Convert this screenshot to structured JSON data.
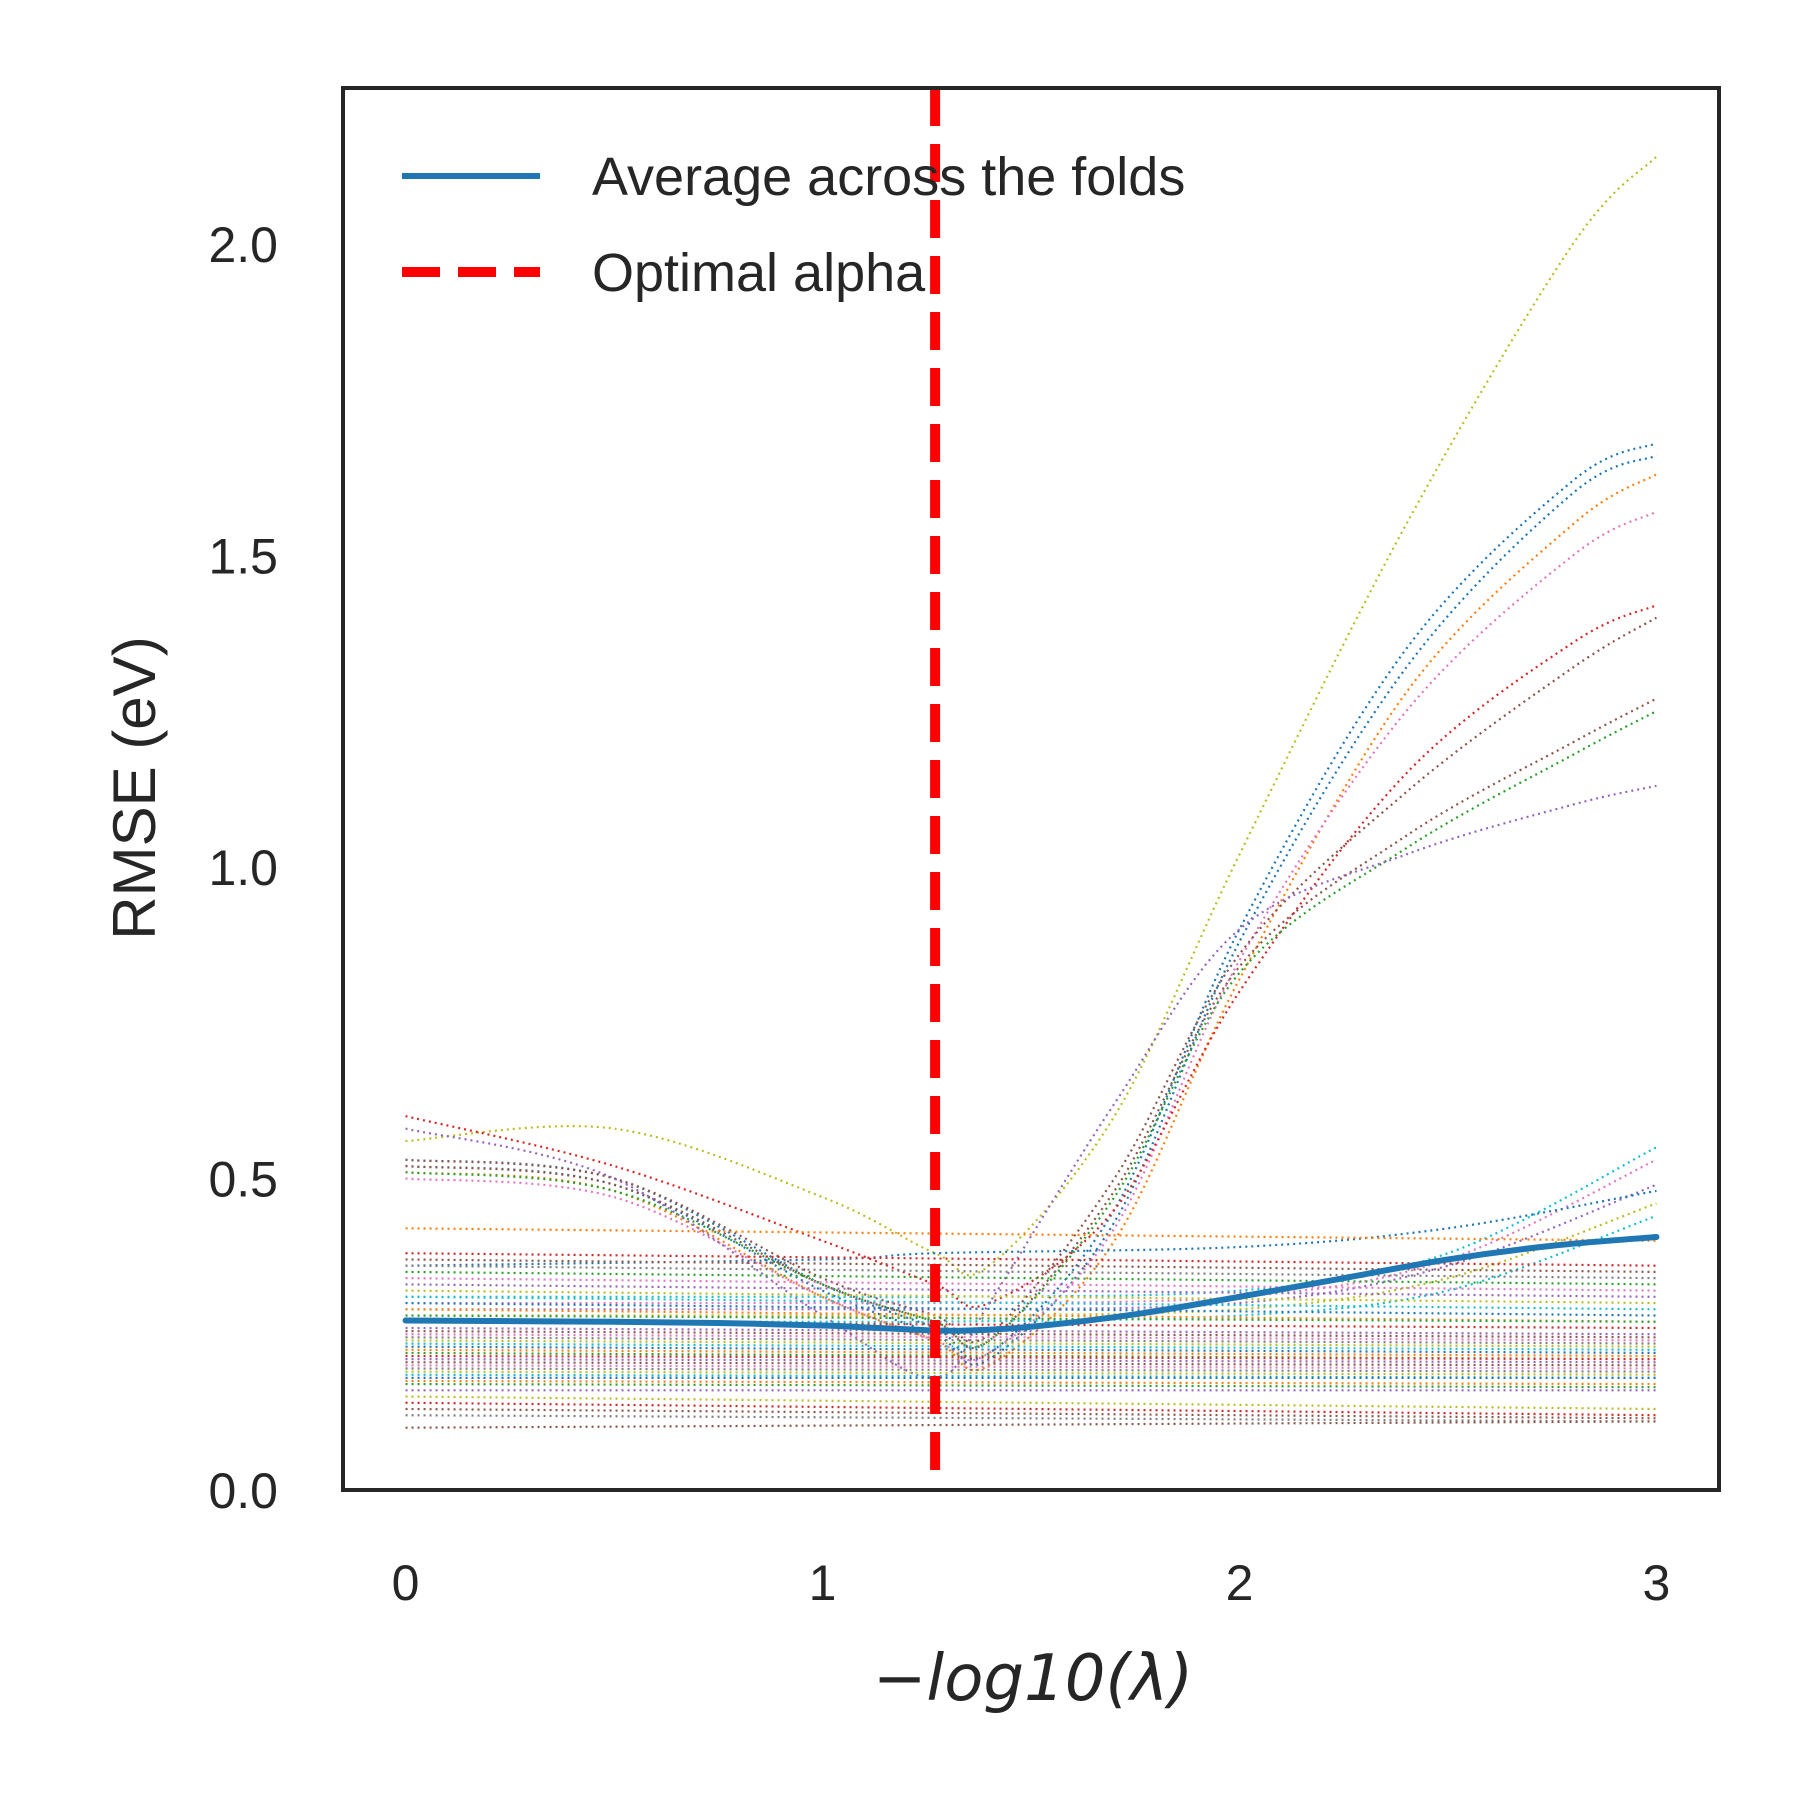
{
  "chart_data": {
    "type": "line",
    "xlabel": "−log10(λ)",
    "ylabel": "RMSE (eV)",
    "xlim": [
      -0.15,
      3.15
    ],
    "ylim": [
      0.0,
      2.25
    ],
    "xticks": [
      0,
      1,
      2,
      3
    ],
    "xtick_labels": [
      "0",
      "1",
      "2",
      "3"
    ],
    "yticks": [
      0.0,
      0.5,
      1.0,
      1.5,
      2.0
    ],
    "ytick_labels": [
      "0.0",
      "0.5",
      "1.0",
      "1.5",
      "2.0"
    ],
    "grid": false,
    "legend_position": "upper-left",
    "legend": [
      {
        "label": "Average across the folds",
        "style": "solid",
        "color": "#1f77b4"
      },
      {
        "label": "Optimal alpha",
        "style": "dashed",
        "color": "#ff0000"
      }
    ],
    "optimal_alpha_x": 1.27,
    "average": {
      "name": "Average across the folds",
      "color": "#1f77b4",
      "x": [
        0,
        0.25,
        0.5,
        0.75,
        1.0,
        1.1,
        1.2,
        1.27,
        1.35,
        1.5,
        1.75,
        2.0,
        2.25,
        2.5,
        2.75,
        3.0
      ],
      "y": [
        0.272,
        0.271,
        0.27,
        0.268,
        0.264,
        0.261,
        0.258,
        0.256,
        0.256,
        0.262,
        0.282,
        0.31,
        0.34,
        0.37,
        0.392,
        0.406
      ]
    },
    "fold_series": [
      {
        "color": "#bcbd22",
        "x": [
          0,
          0.5,
          1.0,
          1.27,
          1.4,
          1.7,
          2.0,
          2.4,
          2.8,
          3.0
        ],
        "y": [
          0.56,
          0.58,
          0.47,
          0.38,
          0.36,
          0.6,
          1.02,
          1.55,
          2.0,
          2.14
        ]
      },
      {
        "color": "#1f77b4",
        "x": [
          0,
          0.5,
          1.0,
          1.27,
          1.4,
          1.7,
          2.0,
          2.4,
          2.8,
          3.0
        ],
        "y": [
          0.53,
          0.5,
          0.33,
          0.26,
          0.22,
          0.45,
          0.9,
          1.35,
          1.62,
          1.68
        ]
      },
      {
        "color": "#1f77b4",
        "x": [
          0,
          0.5,
          1.0,
          1.27,
          1.4,
          1.7,
          2.0,
          2.4,
          2.8,
          3.0
        ],
        "y": [
          0.52,
          0.49,
          0.32,
          0.25,
          0.21,
          0.43,
          0.88,
          1.32,
          1.6,
          1.66
        ]
      },
      {
        "color": "#ff7f0e",
        "x": [
          0,
          0.5,
          1.0,
          1.27,
          1.4,
          1.7,
          2.0,
          2.4,
          2.8,
          3.0
        ],
        "y": [
          0.51,
          0.48,
          0.31,
          0.24,
          0.2,
          0.4,
          0.82,
          1.28,
          1.55,
          1.63
        ]
      },
      {
        "color": "#e377c2",
        "x": [
          0,
          0.5,
          1.0,
          1.27,
          1.4,
          1.7,
          2.0,
          2.4,
          2.8,
          3.0
        ],
        "y": [
          0.5,
          0.47,
          0.31,
          0.24,
          0.22,
          0.42,
          0.85,
          1.25,
          1.5,
          1.57
        ]
      },
      {
        "color": "#d62728",
        "x": [
          0,
          0.5,
          1.0,
          1.27,
          1.4,
          1.7,
          2.0,
          2.4,
          2.8,
          3.0
        ],
        "y": [
          0.6,
          0.52,
          0.4,
          0.33,
          0.3,
          0.45,
          0.8,
          1.15,
          1.36,
          1.42
        ]
      },
      {
        "color": "#8c564b",
        "x": [
          0,
          0.5,
          1.0,
          1.27,
          1.4,
          1.7,
          2.0,
          2.4,
          2.8,
          3.0
        ],
        "y": [
          0.53,
          0.5,
          0.34,
          0.28,
          0.25,
          0.5,
          0.86,
          1.12,
          1.32,
          1.4
        ]
      },
      {
        "color": "#8c564b",
        "x": [
          0,
          0.5,
          1.0,
          1.27,
          1.4,
          1.7,
          2.0,
          2.4,
          2.8,
          3.0
        ],
        "y": [
          0.52,
          0.49,
          0.33,
          0.27,
          0.24,
          0.48,
          0.84,
          1.05,
          1.2,
          1.27
        ]
      },
      {
        "color": "#2ca02c",
        "x": [
          0,
          0.5,
          1.0,
          1.27,
          1.4,
          1.7,
          2.0,
          2.4,
          2.8,
          3.0
        ],
        "y": [
          0.51,
          0.48,
          0.33,
          0.27,
          0.24,
          0.47,
          0.83,
          1.03,
          1.18,
          1.25
        ]
      },
      {
        "color": "#9467bd",
        "x": [
          0,
          0.5,
          1.0,
          1.27,
          1.4,
          1.7,
          2.0,
          2.4,
          2.8,
          3.0
        ],
        "y": [
          0.58,
          0.5,
          0.28,
          0.18,
          0.3,
          0.62,
          0.9,
          1.02,
          1.1,
          1.13
        ]
      },
      {
        "color": "#17becf",
        "x": [
          0,
          1.0,
          1.27,
          2.0,
          2.5,
          3.0
        ],
        "y": [
          0.31,
          0.31,
          0.31,
          0.32,
          0.38,
          0.55
        ]
      },
      {
        "color": "#e377c2",
        "x": [
          0,
          1.0,
          1.27,
          2.0,
          2.5,
          3.0
        ],
        "y": [
          0.3,
          0.3,
          0.3,
          0.31,
          0.37,
          0.53
        ]
      },
      {
        "color": "#9467bd",
        "x": [
          0,
          1.0,
          1.27,
          2.0,
          2.5,
          3.0
        ],
        "y": [
          0.29,
          0.29,
          0.29,
          0.3,
          0.36,
          0.49
        ]
      },
      {
        "color": "#1f77b4",
        "x": [
          0,
          1.0,
          1.27,
          2.0,
          2.5,
          3.0
        ],
        "y": [
          0.36,
          0.37,
          0.38,
          0.39,
          0.42,
          0.48
        ]
      },
      {
        "color": "#bcbd22",
        "x": [
          0,
          1.0,
          1.27,
          2.0,
          2.5,
          3.0
        ],
        "y": [
          0.28,
          0.28,
          0.28,
          0.29,
          0.34,
          0.46
        ]
      },
      {
        "color": "#17becf",
        "x": [
          0,
          1.0,
          1.27,
          2.0,
          2.5,
          3.0
        ],
        "y": [
          0.27,
          0.27,
          0.27,
          0.28,
          0.32,
          0.44
        ]
      },
      {
        "color": "#ff7f0e",
        "x": [
          0,
          3.0
        ],
        "y": [
          0.42,
          0.4
        ]
      },
      {
        "color": "#d62728",
        "x": [
          0,
          3.0
        ],
        "y": [
          0.38,
          0.36
        ]
      },
      {
        "color": "#8c564b",
        "x": [
          0,
          3.0
        ],
        "y": [
          0.37,
          0.35
        ]
      },
      {
        "color": "#7f7f7f",
        "x": [
          0,
          3.0
        ],
        "y": [
          0.36,
          0.34
        ]
      },
      {
        "color": "#2ca02c",
        "x": [
          0,
          3.0
        ],
        "y": [
          0.35,
          0.33
        ]
      },
      {
        "color": "#e377c2",
        "x": [
          0,
          3.0
        ],
        "y": [
          0.34,
          0.32
        ]
      },
      {
        "color": "#9467bd",
        "x": [
          0,
          3.0
        ],
        "y": [
          0.33,
          0.31
        ]
      },
      {
        "color": "#bcbd22",
        "x": [
          0,
          3.0
        ],
        "y": [
          0.32,
          0.3
        ]
      },
      {
        "color": "#17becf",
        "x": [
          0,
          3.0
        ],
        "y": [
          0.31,
          0.29
        ]
      },
      {
        "color": "#1f77b4",
        "x": [
          0,
          3.0
        ],
        "y": [
          0.3,
          0.28
        ]
      },
      {
        "color": "#ff7f0e",
        "x": [
          0,
          3.0
        ],
        "y": [
          0.29,
          0.27
        ]
      },
      {
        "color": "#2ca02c",
        "x": [
          0,
          3.0
        ],
        "y": [
          0.28,
          0.27
        ]
      },
      {
        "color": "#d62728",
        "x": [
          0,
          3.0
        ],
        "y": [
          0.27,
          0.26
        ]
      },
      {
        "color": "#9467bd",
        "x": [
          0,
          3.0
        ],
        "y": [
          0.26,
          0.25
        ]
      },
      {
        "color": "#8c564b",
        "x": [
          0,
          3.0
        ],
        "y": [
          0.255,
          0.245
        ]
      },
      {
        "color": "#e377c2",
        "x": [
          0,
          3.0
        ],
        "y": [
          0.25,
          0.24
        ]
      },
      {
        "color": "#7f7f7f",
        "x": [
          0,
          3.0
        ],
        "y": [
          0.245,
          0.235
        ]
      },
      {
        "color": "#bcbd22",
        "x": [
          0,
          3.0
        ],
        "y": [
          0.24,
          0.23
        ]
      },
      {
        "color": "#17becf",
        "x": [
          0,
          3.0
        ],
        "y": [
          0.235,
          0.225
        ]
      },
      {
        "color": "#1f77b4",
        "x": [
          0,
          3.0
        ],
        "y": [
          0.23,
          0.22
        ]
      },
      {
        "color": "#ff7f0e",
        "x": [
          0,
          3.0
        ],
        "y": [
          0.225,
          0.215
        ]
      },
      {
        "color": "#2ca02c",
        "x": [
          0,
          3.0
        ],
        "y": [
          0.22,
          0.21
        ]
      },
      {
        "color": "#d62728",
        "x": [
          0,
          3.0
        ],
        "y": [
          0.215,
          0.21
        ]
      },
      {
        "color": "#9467bd",
        "x": [
          0,
          3.0
        ],
        "y": [
          0.21,
          0.205
        ]
      },
      {
        "color": "#8c564b",
        "x": [
          0,
          3.0
        ],
        "y": [
          0.205,
          0.2
        ]
      },
      {
        "color": "#e377c2",
        "x": [
          0,
          3.0
        ],
        "y": [
          0.2,
          0.195
        ]
      },
      {
        "color": "#7f7f7f",
        "x": [
          0,
          3.0
        ],
        "y": [
          0.195,
          0.19
        ]
      },
      {
        "color": "#bcbd22",
        "x": [
          0,
          3.0
        ],
        "y": [
          0.19,
          0.185
        ]
      },
      {
        "color": "#17becf",
        "x": [
          0,
          3.0
        ],
        "y": [
          0.185,
          0.18
        ]
      },
      {
        "color": "#1f77b4",
        "x": [
          0,
          3.0
        ],
        "y": [
          0.18,
          0.18
        ]
      },
      {
        "color": "#ff7f0e",
        "x": [
          0,
          3.0
        ],
        "y": [
          0.175,
          0.17
        ]
      },
      {
        "color": "#2ca02c",
        "x": [
          0,
          3.0
        ],
        "y": [
          0.17,
          0.165
        ]
      },
      {
        "color": "#9467bd",
        "x": [
          0,
          3.0
        ],
        "y": [
          0.16,
          0.16
        ]
      },
      {
        "color": "#bcbd22",
        "x": [
          0,
          3.0
        ],
        "y": [
          0.15,
          0.13
        ]
      },
      {
        "color": "#d62728",
        "x": [
          0,
          3.0
        ],
        "y": [
          0.14,
          0.12
        ]
      },
      {
        "color": "#8c564b",
        "x": [
          0,
          3.0
        ],
        "y": [
          0.13,
          0.115
        ]
      },
      {
        "color": "#7f7f7f",
        "x": [
          0,
          3.0
        ],
        "y": [
          0.12,
          0.11
        ]
      },
      {
        "color": "#8c564b",
        "x": [
          0,
          3.0
        ],
        "y": [
          0.1,
          0.11
        ]
      }
    ]
  }
}
